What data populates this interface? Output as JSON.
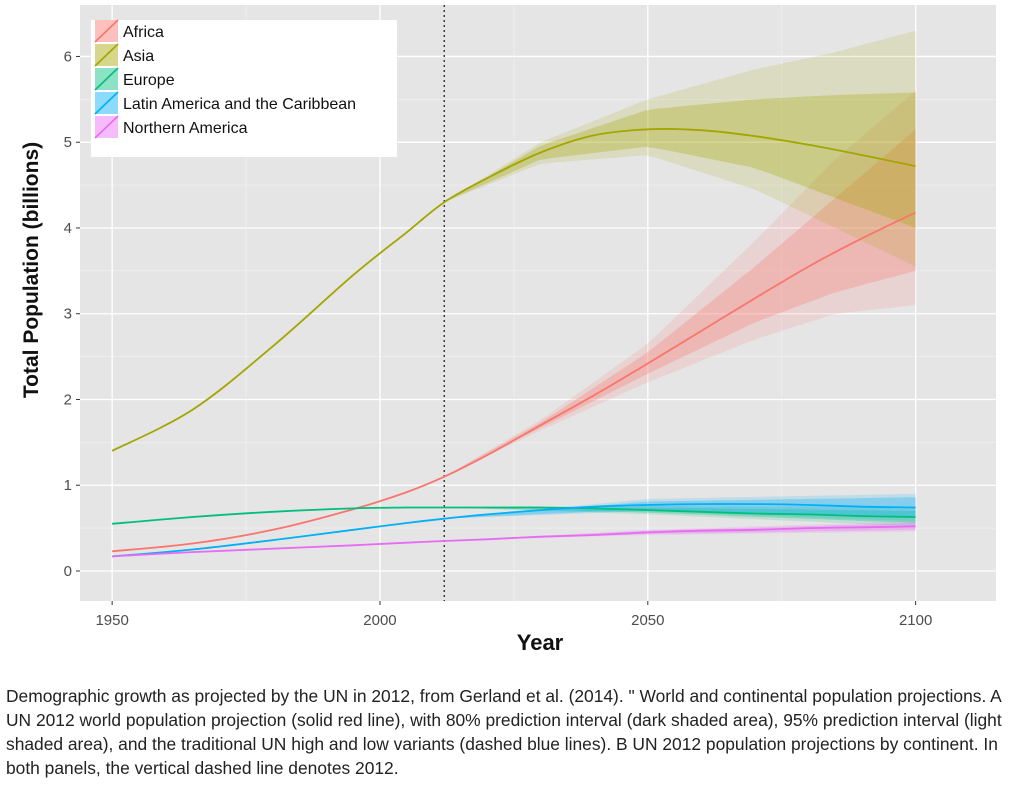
{
  "chart_data": {
    "type": "line",
    "title": "",
    "xlabel": "Year",
    "ylabel": "Total Population (billions)",
    "xlim": [
      1944,
      2115
    ],
    "ylim": [
      -0.35,
      6.6
    ],
    "x_ticks": [
      1950,
      2000,
      2050,
      2100
    ],
    "y_ticks": [
      0,
      1,
      2,
      3,
      4,
      5,
      6
    ],
    "x_tick_labels": [
      "1950",
      "2000",
      "2050",
      "2100"
    ],
    "y_tick_labels": [
      "0",
      "1",
      "2",
      "3",
      "4",
      "5",
      "6"
    ],
    "reference_line_x": 2012,
    "projection_start": 2012,
    "grid": true,
    "legend_position": "top-left",
    "series": [
      {
        "name": "Africa",
        "color": "#F8766D",
        "x": [
          1950,
          1965,
          1980,
          1995,
          2005,
          2012,
          2020,
          2030,
          2040,
          2050,
          2060,
          2070,
          2080,
          2090,
          2100
        ],
        "values": [
          0.23,
          0.32,
          0.48,
          0.72,
          0.92,
          1.1,
          1.35,
          1.7,
          2.05,
          2.42,
          2.8,
          3.18,
          3.55,
          3.88,
          4.18
        ],
        "band80": {
          "x": [
            2012,
            2030,
            2050,
            2070,
            2085,
            2100
          ],
          "low": [
            1.1,
            1.67,
            2.3,
            2.9,
            3.25,
            3.5
          ],
          "high": [
            1.1,
            1.73,
            2.55,
            3.55,
            4.35,
            5.15
          ]
        },
        "band95": {
          "x": [
            2012,
            2030,
            2050,
            2070,
            2085,
            2100
          ],
          "low": [
            1.1,
            1.64,
            2.2,
            2.7,
            3.0,
            3.1
          ],
          "high": [
            1.1,
            1.76,
            2.65,
            3.85,
            4.8,
            5.6
          ]
        }
      },
      {
        "name": "Asia",
        "color": "#A3A500",
        "x": [
          1950,
          1965,
          1980,
          1995,
          2005,
          2012,
          2020,
          2030,
          2040,
          2050,
          2060,
          2070,
          2080,
          2090,
          2100
        ],
        "values": [
          1.4,
          1.88,
          2.62,
          3.45,
          3.95,
          4.3,
          4.58,
          4.88,
          5.08,
          5.15,
          5.14,
          5.07,
          4.97,
          4.85,
          4.72
        ],
        "band80": {
          "x": [
            2012,
            2030,
            2050,
            2070,
            2085,
            2100
          ],
          "low": [
            4.3,
            4.8,
            4.95,
            4.7,
            4.35,
            4.0
          ],
          "high": [
            4.3,
            4.96,
            5.38,
            5.5,
            5.55,
            5.58
          ]
        },
        "band95": {
          "x": [
            2012,
            2030,
            2050,
            2070,
            2085,
            2100
          ],
          "low": [
            4.3,
            4.75,
            4.85,
            4.45,
            4.0,
            3.55
          ],
          "high": [
            4.3,
            5.0,
            5.5,
            5.85,
            6.05,
            6.3
          ]
        }
      },
      {
        "name": "Europe",
        "color": "#00BF7D",
        "x": [
          1950,
          1965,
          1980,
          1995,
          2005,
          2012,
          2020,
          2030,
          2040,
          2050,
          2060,
          2070,
          2080,
          2090,
          2100
        ],
        "values": [
          0.55,
          0.63,
          0.69,
          0.73,
          0.74,
          0.74,
          0.74,
          0.74,
          0.73,
          0.71,
          0.69,
          0.67,
          0.66,
          0.64,
          0.63
        ],
        "band80": {
          "x": [
            2012,
            2050,
            2100
          ],
          "low": [
            0.74,
            0.68,
            0.56
          ],
          "high": [
            0.74,
            0.74,
            0.7
          ]
        },
        "band95": {
          "x": [
            2012,
            2050,
            2100
          ],
          "low": [
            0.74,
            0.66,
            0.52
          ],
          "high": [
            0.74,
            0.76,
            0.74
          ]
        }
      },
      {
        "name": "Latin America and the Caribbean",
        "color": "#00B0F6",
        "x": [
          1950,
          1965,
          1980,
          1995,
          2005,
          2012,
          2020,
          2030,
          2040,
          2050,
          2060,
          2070,
          2080,
          2090,
          2100
        ],
        "values": [
          0.17,
          0.25,
          0.36,
          0.48,
          0.56,
          0.61,
          0.66,
          0.71,
          0.75,
          0.77,
          0.78,
          0.78,
          0.77,
          0.75,
          0.74
        ],
        "band80": {
          "x": [
            2012,
            2050,
            2100
          ],
          "low": [
            0.61,
            0.72,
            0.62
          ],
          "high": [
            0.61,
            0.81,
            0.86
          ]
        },
        "band95": {
          "x": [
            2012,
            2050,
            2100
          ],
          "low": [
            0.61,
            0.7,
            0.58
          ],
          "high": [
            0.61,
            0.84,
            0.9
          ]
        }
      },
      {
        "name": "Northern America",
        "color": "#E76BF3",
        "x": [
          1950,
          1965,
          1980,
          1995,
          2005,
          2012,
          2020,
          2030,
          2040,
          2050,
          2060,
          2070,
          2080,
          2090,
          2100
        ],
        "values": [
          0.17,
          0.22,
          0.26,
          0.3,
          0.33,
          0.35,
          0.37,
          0.4,
          0.42,
          0.45,
          0.47,
          0.48,
          0.5,
          0.51,
          0.52
        ],
        "band80": {
          "x": [
            2012,
            2050,
            2100
          ],
          "low": [
            0.35,
            0.43,
            0.48
          ],
          "high": [
            0.35,
            0.47,
            0.56
          ]
        },
        "band95": {
          "x": [
            2012,
            2050,
            2100
          ],
          "low": [
            0.35,
            0.42,
            0.46
          ],
          "high": [
            0.35,
            0.48,
            0.58
          ]
        }
      }
    ]
  },
  "caption": "Demographic growth as projected by the UN in 2012, from Gerland et al. (2014). \" World and continental population projections. A UN 2012 world population projection (solid red line), with 80% prediction interval (dark shaded area), 95% prediction interval (light shaded area), and the traditional UN high and low variants (dashed blue lines). B UN 2012 population projections by continent. In both panels, the vertical dashed line denotes 2012."
}
